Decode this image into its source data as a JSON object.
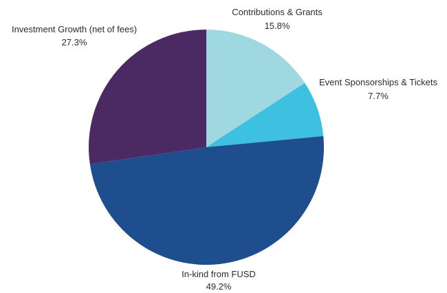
{
  "chart_data": {
    "type": "pie",
    "title": "",
    "start_angle_deg": 0,
    "direction": "clockwise",
    "legend": "none",
    "slices": [
      {
        "label": "Contributions & Grants",
        "value": 15.8,
        "value_label": "15.8%",
        "color": "#9fd8e0"
      },
      {
        "label": "Event Sponsorships & Tickets",
        "value": 7.7,
        "value_label": "7.7%",
        "color": "#3ec1e0"
      },
      {
        "label": "In-kind from FUSD",
        "value": 49.2,
        "value_label": "49.2%",
        "color": "#1f4e8f"
      },
      {
        "label": "Investment Growth (net of fees)",
        "value": 27.3,
        "value_label": "27.3%",
        "color": "#4b2a63"
      }
    ]
  }
}
